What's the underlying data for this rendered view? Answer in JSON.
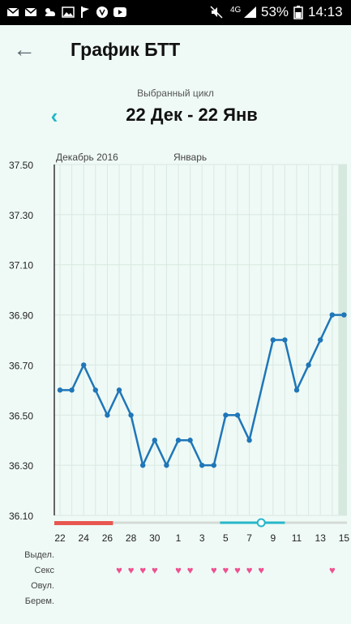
{
  "status_bar": {
    "signal": "4G",
    "battery": "53%",
    "time": "14:13",
    "icons": [
      "mail-icon",
      "mail-icon",
      "weather-icon",
      "image-icon",
      "flag-icon",
      "shield-icon",
      "youtube-icon",
      "mute-icon",
      "alarm-icon",
      "signal-icon",
      "battery-icon"
    ]
  },
  "header": {
    "title": "График БТТ"
  },
  "cycle": {
    "caption": "Выбранный цикл",
    "range": "22 Дек - 22 Янв"
  },
  "colors": {
    "line": "#1f76b8",
    "period_bar": "#e8574f",
    "fertile_bar": "#26b6c9",
    "heart": "#f0508f",
    "grid": "#d9e8e0"
  },
  "chart_data": {
    "type": "line",
    "month_labels": [
      {
        "label": "Декабрь 2016",
        "at_day": 22
      },
      {
        "label": "Январь",
        "at_day": 32
      }
    ],
    "x_labels": [
      "22",
      "24",
      "26",
      "28",
      "30",
      "1",
      "3",
      "5",
      "7",
      "9",
      "11",
      "13",
      "15"
    ],
    "y_ticks": [
      "37.50",
      "37.30",
      "37.10",
      "36.90",
      "36.70",
      "36.50",
      "36.30",
      "36.10"
    ],
    "ylim": [
      36.1,
      37.5
    ],
    "points": [
      36.6,
      36.6,
      36.7,
      36.6,
      36.5,
      36.6,
      36.5,
      36.3,
      36.4,
      36.3,
      36.4,
      36.4,
      36.3,
      36.3,
      36.5,
      36.5,
      36.4,
      null,
      36.8,
      36.8,
      36.6,
      36.7,
      36.8,
      36.9,
      36.9
    ],
    "period_days": [
      0,
      4
    ],
    "fertile_days": [
      14,
      19
    ],
    "ovulation_day": 17,
    "highlight_day": 24,
    "row_labels": [
      "Выдел.",
      "Секс",
      "Овул.",
      "Берем."
    ],
    "sex_days": [
      5,
      6,
      7,
      8,
      10,
      11,
      13,
      14,
      15,
      16,
      17,
      23
    ]
  }
}
